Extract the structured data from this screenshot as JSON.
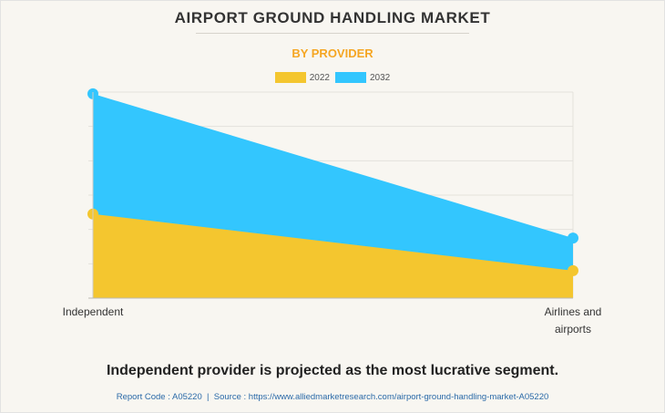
{
  "title": "AIRPORT GROUND HANDLING MARKET",
  "subtitle": "BY PROVIDER",
  "headline": "Independent provider is projected as the most lucrative segment.",
  "footer": {
    "report_code": "Report Code : A05220",
    "separator": "|",
    "source": "Source : https://www.alliedmarketresearch.com/airport-ground-handling-market-A05220"
  },
  "colors": {
    "series_2022": "#f4c62f",
    "series_2032": "#33c6fe",
    "background": "#f8f6f1",
    "subtitle": "#f5a623"
  },
  "chart_data": {
    "type": "area",
    "categories": [
      "Independent",
      "Airlines and airports"
    ],
    "series": [
      {
        "name": "2022",
        "values": [
          24.5,
          8.0
        ]
      },
      {
        "name": "2032",
        "values": [
          59.5,
          17.5
        ]
      }
    ],
    "ylim": [
      0,
      60
    ],
    "grid": true,
    "legend": "top-center",
    "xlabel": "",
    "ylabel": ""
  }
}
